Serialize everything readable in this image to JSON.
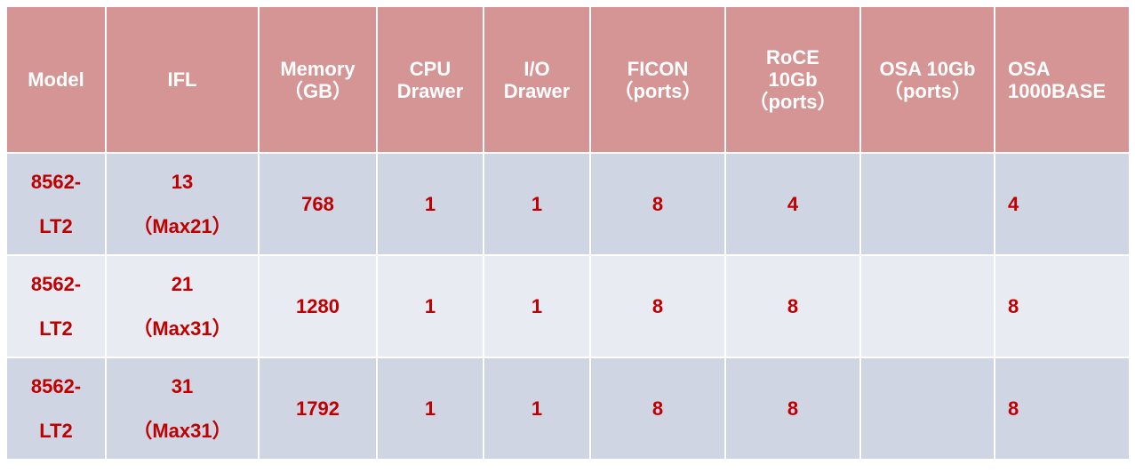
{
  "table": {
    "header_color": "#D69595",
    "row_colors": [
      "#CFD5E3",
      "#E8EBF2"
    ],
    "text_color": "#C00000",
    "headers": [
      [
        "Model"
      ],
      [
        "IFL"
      ],
      [
        "Memory",
        "（GB）"
      ],
      [
        "CPU",
        "Drawer"
      ],
      [
        "I/O",
        "Drawer"
      ],
      [
        "FICON",
        "（ports）"
      ],
      [
        "RoCE",
        "10Gb",
        "（ports）"
      ],
      [
        "OSA 10Gb",
        "（ports）"
      ],
      [
        "OSA",
        "1000BASE"
      ]
    ],
    "rows": [
      [
        [
          "8562-",
          "LT2"
        ],
        [
          "13",
          "（Max21）"
        ],
        [
          "768"
        ],
        [
          "1"
        ],
        [
          "1"
        ],
        [
          "8"
        ],
        [
          "4"
        ],
        [
          ""
        ],
        [
          "4"
        ]
      ],
      [
        [
          "8562-",
          "LT2"
        ],
        [
          "21",
          "（Max31）"
        ],
        [
          "1280"
        ],
        [
          "1"
        ],
        [
          "1"
        ],
        [
          "8"
        ],
        [
          "8"
        ],
        [
          ""
        ],
        [
          "8"
        ]
      ],
      [
        [
          "8562-",
          "LT2"
        ],
        [
          "31",
          "（Max31）"
        ],
        [
          "1792"
        ],
        [
          "1"
        ],
        [
          "1"
        ],
        [
          "8"
        ],
        [
          "8"
        ],
        [
          ""
        ],
        [
          "8"
        ]
      ]
    ]
  }
}
